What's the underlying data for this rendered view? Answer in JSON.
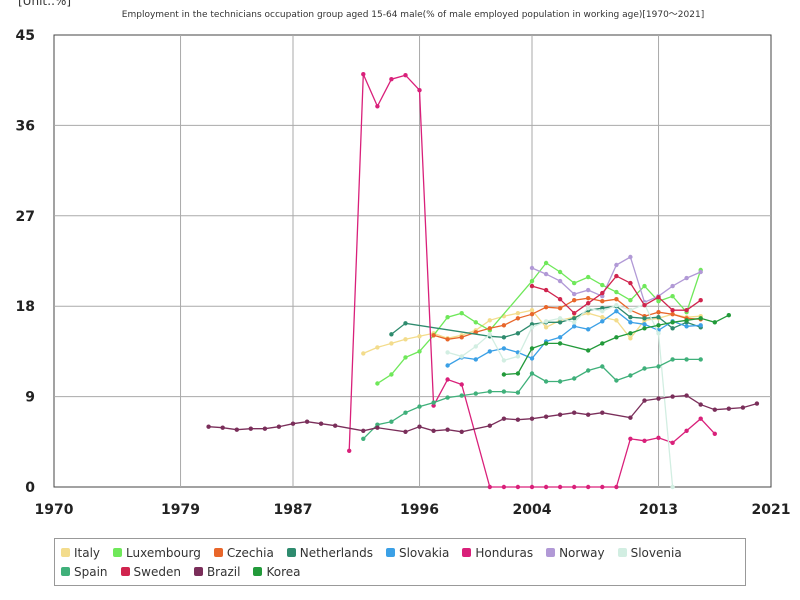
{
  "unit_label": "[Unit:.%]",
  "chart_data": {
    "type": "line",
    "title": "Employment in the technicians occupation group aged 15-64 male(% of male employed population in working age)[1970〜2021]",
    "xlim": [
      1970,
      2021
    ],
    "ylim": [
      0,
      45
    ],
    "x_ticks": [
      "1970",
      "1979",
      "1987",
      "1996",
      "2004",
      "2013",
      "2021"
    ],
    "y_ticks": [
      "0",
      "9",
      "18",
      "27",
      "36",
      "45"
    ],
    "grid": true,
    "legend_position": "bottom",
    "series": [
      {
        "name": "Italy",
        "color": "#f3dc8c",
        "points": [
          [
            1992,
            13.3
          ],
          [
            1993,
            13.9
          ],
          [
            1994,
            14.3
          ],
          [
            1995,
            14.7
          ],
          [
            1996,
            15.0
          ],
          [
            1997,
            15.3
          ],
          [
            1998,
            14.8
          ],
          [
            1999,
            15.1
          ],
          [
            2000,
            15.6
          ],
          [
            2001,
            16.6
          ],
          [
            2002,
            17.0
          ],
          [
            2003,
            17.3
          ],
          [
            2004,
            17.6
          ],
          [
            2005,
            15.9
          ],
          [
            2006,
            16.6
          ],
          [
            2007,
            16.9
          ],
          [
            2008,
            17.3
          ],
          [
            2009,
            16.9
          ],
          [
            2010,
            16.6
          ],
          [
            2011,
            14.8
          ],
          [
            2012,
            16.6
          ],
          [
            2013,
            16.8
          ],
          [
            2014,
            17.2
          ],
          [
            2015,
            16.9
          ],
          [
            2016,
            17.0
          ]
        ]
      },
      {
        "name": "Luxembourg",
        "color": "#6fe85a",
        "points": [
          [
            1993,
            10.3
          ],
          [
            1994,
            11.2
          ],
          [
            1995,
            12.9
          ],
          [
            1996,
            13.5
          ],
          [
            1997,
            15.1
          ],
          [
            1998,
            16.9
          ],
          [
            1999,
            17.3
          ],
          [
            2000,
            16.4
          ],
          [
            2001,
            15.6
          ],
          [
            2004,
            20.5
          ],
          [
            2005,
            22.3
          ],
          [
            2006,
            21.4
          ],
          [
            2007,
            20.3
          ],
          [
            2008,
            20.9
          ],
          [
            2009,
            20.1
          ],
          [
            2010,
            19.4
          ],
          [
            2011,
            18.6
          ],
          [
            2012,
            20.0
          ],
          [
            2013,
            18.5
          ],
          [
            2014,
            19.0
          ],
          [
            2015,
            17.4
          ],
          [
            2016,
            21.6
          ]
        ]
      },
      {
        "name": "Czechia",
        "color": "#e8662a",
        "points": [
          [
            1997,
            15.1
          ],
          [
            1998,
            14.7
          ],
          [
            1999,
            14.9
          ],
          [
            2000,
            15.4
          ],
          [
            2001,
            15.8
          ],
          [
            2002,
            16.1
          ],
          [
            2003,
            16.8
          ],
          [
            2004,
            17.2
          ],
          [
            2005,
            17.9
          ],
          [
            2006,
            17.8
          ],
          [
            2007,
            18.6
          ],
          [
            2008,
            18.8
          ],
          [
            2009,
            18.5
          ],
          [
            2010,
            18.7
          ],
          [
            2011,
            17.6
          ],
          [
            2012,
            17.0
          ],
          [
            2013,
            17.4
          ],
          [
            2014,
            17.2
          ],
          [
            2015,
            16.8
          ],
          [
            2016,
            16.7
          ]
        ]
      },
      {
        "name": "Netherlands",
        "color": "#2e8b6e",
        "points": [
          [
            1994,
            15.2
          ],
          [
            1995,
            16.3
          ],
          [
            2001,
            15.0
          ],
          [
            2002,
            14.9
          ],
          [
            2003,
            15.3
          ],
          [
            2004,
            16.2
          ],
          [
            2005,
            16.4
          ],
          [
            2006,
            16.4
          ],
          [
            2007,
            16.8
          ],
          [
            2008,
            17.6
          ],
          [
            2009,
            17.8
          ],
          [
            2010,
            18.0
          ],
          [
            2011,
            16.9
          ],
          [
            2012,
            16.8
          ],
          [
            2013,
            16.9
          ],
          [
            2014,
            15.8
          ],
          [
            2015,
            16.4
          ],
          [
            2016,
            15.9
          ]
        ]
      },
      {
        "name": "Slovakia",
        "color": "#3ba0e6",
        "points": [
          [
            1998,
            12.1
          ],
          [
            1999,
            12.9
          ],
          [
            2000,
            12.7
          ],
          [
            2001,
            13.5
          ],
          [
            2002,
            13.8
          ],
          [
            2003,
            13.4
          ],
          [
            2004,
            12.8
          ],
          [
            2005,
            14.5
          ],
          [
            2006,
            14.9
          ],
          [
            2007,
            16.0
          ],
          [
            2008,
            15.7
          ],
          [
            2009,
            16.5
          ],
          [
            2010,
            17.5
          ],
          [
            2011,
            16.4
          ],
          [
            2012,
            16.2
          ],
          [
            2013,
            15.6
          ],
          [
            2014,
            16.5
          ],
          [
            2015,
            16.0
          ],
          [
            2016,
            16.1
          ]
        ]
      },
      {
        "name": "Honduras",
        "color": "#d9207a",
        "points": [
          [
            1991,
            3.6
          ],
          [
            1992,
            41.1
          ],
          [
            1993,
            37.9
          ],
          [
            1994,
            40.6
          ],
          [
            1995,
            41.0
          ],
          [
            1996,
            39.5
          ],
          [
            1997,
            8.1
          ],
          [
            1998,
            10.7
          ],
          [
            1999,
            10.2
          ],
          [
            2001,
            0
          ],
          [
            2002,
            0
          ],
          [
            2003,
            0
          ],
          [
            2004,
            0
          ],
          [
            2005,
            0
          ],
          [
            2006,
            0
          ],
          [
            2007,
            0
          ],
          [
            2008,
            0
          ],
          [
            2009,
            0
          ],
          [
            2010,
            0
          ],
          [
            2011,
            4.8
          ],
          [
            2012,
            4.6
          ],
          [
            2013,
            4.9
          ],
          [
            2014,
            4.4
          ],
          [
            2015,
            5.6
          ],
          [
            2016,
            6.8
          ],
          [
            2017,
            5.3
          ]
        ]
      },
      {
        "name": "Norway",
        "color": "#b199d6",
        "points": [
          [
            2004,
            21.8
          ],
          [
            2005,
            21.2
          ],
          [
            2006,
            20.5
          ],
          [
            2007,
            19.2
          ],
          [
            2008,
            19.6
          ],
          [
            2009,
            19.0
          ],
          [
            2010,
            22.1
          ],
          [
            2011,
            22.9
          ],
          [
            2012,
            18.4
          ],
          [
            2013,
            19.0
          ],
          [
            2014,
            20.0
          ],
          [
            2015,
            20.8
          ],
          [
            2016,
            21.4
          ]
        ]
      },
      {
        "name": "Slovenia",
        "color": "#d2eee2",
        "points": [
          [
            1998,
            13.4
          ],
          [
            1999,
            13.0
          ],
          [
            2000,
            14.0
          ],
          [
            2001,
            15.2
          ],
          [
            2002,
            12.6
          ],
          [
            2003,
            13.0
          ],
          [
            2004,
            15.9
          ],
          [
            2005,
            16.5
          ],
          [
            2006,
            16.8
          ],
          [
            2007,
            16.4
          ],
          [
            2008,
            17.8
          ],
          [
            2009,
            17.5
          ],
          [
            2010,
            18.1
          ],
          [
            2011,
            17.6
          ],
          [
            2012,
            18.2
          ],
          [
            2013,
            15.3
          ],
          [
            2014,
            0
          ]
        ]
      },
      {
        "name": "Spain",
        "color": "#3fb07a",
        "points": [
          [
            1992,
            4.8
          ],
          [
            1993,
            6.2
          ],
          [
            1994,
            6.5
          ],
          [
            1995,
            7.4
          ],
          [
            1996,
            8.0
          ],
          [
            1997,
            8.4
          ],
          [
            1998,
            8.9
          ],
          [
            1999,
            9.1
          ],
          [
            2000,
            9.3
          ],
          [
            2001,
            9.5
          ],
          [
            2002,
            9.5
          ],
          [
            2003,
            9.4
          ],
          [
            2004,
            11.3
          ],
          [
            2005,
            10.5
          ],
          [
            2006,
            10.5
          ],
          [
            2007,
            10.8
          ],
          [
            2008,
            11.6
          ],
          [
            2009,
            12.0
          ],
          [
            2010,
            10.6
          ],
          [
            2011,
            11.1
          ],
          [
            2012,
            11.8
          ],
          [
            2013,
            12.0
          ],
          [
            2014,
            12.7
          ],
          [
            2015,
            12.7
          ],
          [
            2016,
            12.7
          ]
        ]
      },
      {
        "name": "Sweden",
        "color": "#d0244e",
        "points": [
          [
            2004,
            20.0
          ],
          [
            2005,
            19.6
          ],
          [
            2006,
            18.7
          ],
          [
            2007,
            17.3
          ],
          [
            2008,
            18.3
          ],
          [
            2009,
            19.3
          ],
          [
            2010,
            21.0
          ],
          [
            2011,
            20.3
          ],
          [
            2012,
            18.1
          ],
          [
            2013,
            18.9
          ],
          [
            2014,
            17.6
          ],
          [
            2015,
            17.6
          ],
          [
            2016,
            18.6
          ]
        ]
      },
      {
        "name": "Brazil",
        "color": "#7a2e5a",
        "points": [
          [
            1981,
            6.0
          ],
          [
            1982,
            5.9
          ],
          [
            1983,
            5.7
          ],
          [
            1984,
            5.8
          ],
          [
            1985,
            5.8
          ],
          [
            1986,
            6.0
          ],
          [
            1987,
            6.3
          ],
          [
            1988,
            6.5
          ],
          [
            1989,
            6.3
          ],
          [
            1990,
            6.1
          ],
          [
            1992,
            5.6
          ],
          [
            1993,
            5.9
          ],
          [
            1995,
            5.5
          ],
          [
            1996,
            6.0
          ],
          [
            1997,
            5.6
          ],
          [
            1998,
            5.7
          ],
          [
            1999,
            5.5
          ],
          [
            2001,
            6.1
          ],
          [
            2002,
            6.8
          ],
          [
            2003,
            6.7
          ],
          [
            2004,
            6.8
          ],
          [
            2005,
            7.0
          ],
          [
            2006,
            7.2
          ],
          [
            2007,
            7.4
          ],
          [
            2008,
            7.2
          ],
          [
            2009,
            7.4
          ],
          [
            2011,
            6.9
          ],
          [
            2012,
            8.6
          ],
          [
            2013,
            8.8
          ],
          [
            2014,
            9.0
          ],
          [
            2015,
            9.1
          ],
          [
            2016,
            8.2
          ],
          [
            2017,
            7.7
          ],
          [
            2018,
            7.8
          ],
          [
            2019,
            7.9
          ],
          [
            2020,
            8.3
          ]
        ]
      },
      {
        "name": "Korea",
        "color": "#229a3a",
        "points": [
          [
            2002,
            11.2
          ],
          [
            2003,
            11.3
          ],
          [
            2004,
            13.8
          ],
          [
            2005,
            14.3
          ],
          [
            2006,
            14.3
          ],
          [
            2008,
            13.6
          ],
          [
            2009,
            14.3
          ],
          [
            2010,
            14.9
          ],
          [
            2011,
            15.3
          ],
          [
            2012,
            15.8
          ],
          [
            2013,
            16.1
          ],
          [
            2014,
            16.4
          ],
          [
            2015,
            16.6
          ],
          [
            2016,
            16.8
          ],
          [
            2017,
            16.4
          ],
          [
            2018,
            17.1
          ]
        ]
      }
    ]
  }
}
